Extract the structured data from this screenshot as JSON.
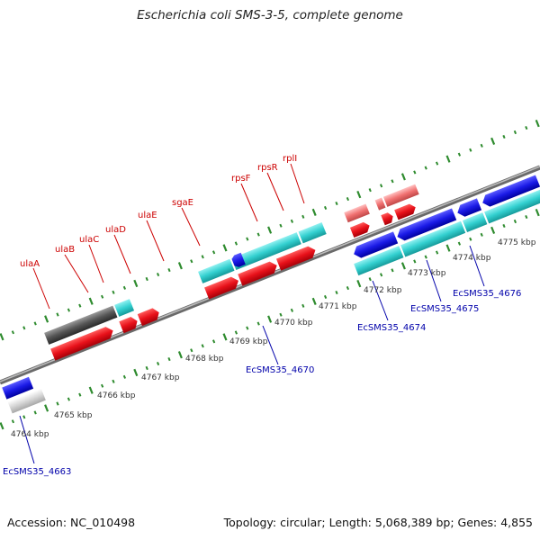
{
  "title": "Escherichia coli SMS-3-5, complete genome",
  "footer": {
    "accession": "Accession: NC_010498",
    "topology": "Topology: circular; Length: 5,068,389 bp; Genes: 4,855"
  },
  "colors": {
    "backbone": "#8a8a8a",
    "tick": "#2e8b2e",
    "cds_forward": "#e8111a",
    "cds_reverse": "#1a1ae6",
    "gene_cyan": "#33d0d0",
    "gene_grey": "#555555",
    "rna": "#f07070",
    "red_label": "#cc0000",
    "blue_label": "#0000aa"
  },
  "scale_labels": [
    "4764 kbp",
    "4765 kbp",
    "4766 kbp",
    "4767 kbp",
    "4768 kbp",
    "4769 kbp",
    "4770 kbp",
    "4771 kbp",
    "4772 kbp",
    "4773 kbp",
    "4774 kbp",
    "4775 kbp"
  ],
  "top_gene_labels": [
    "ulaA",
    "ulaB",
    "ulaC",
    "ulaD",
    "ulaE",
    "sgaE",
    "rpsF",
    "rpsR",
    "rplI"
  ],
  "bottom_gene_labels": [
    "EcSMS35_4663",
    "EcSMS35_4670",
    "EcSMS35_4674",
    "EcSMS35_4675",
    "EcSMS35_4676"
  ]
}
